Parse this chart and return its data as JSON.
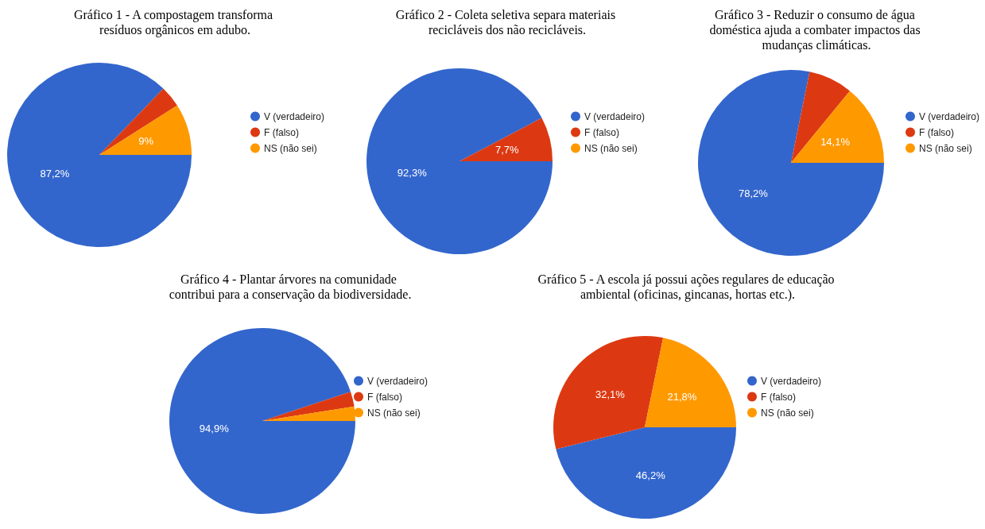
{
  "chart_data": [
    {
      "type": "pie",
      "title": "Gráfico 1 - A compostagem transforma resíduos orgânicos em adubo.",
      "categories": [
        "V (verdadeiro)",
        "F (falso)",
        "NS (não sei)"
      ],
      "values": [
        87.2,
        3.8,
        9
      ],
      "colors": [
        "#3366cc",
        "#dc3912",
        "#ff9900"
      ],
      "value_labels": [
        "87,2%",
        null,
        "9%"
      ],
      "legend": "right"
    },
    {
      "type": "pie",
      "title": "Gráfico 2 - Coleta seletiva separa materiais recicláveis dos não recicláveis.",
      "categories": [
        "V (verdadeiro)",
        "F (falso)",
        "NS (não sei)"
      ],
      "values": [
        92.3,
        7.7,
        0
      ],
      "colors": [
        "#3366cc",
        "#dc3912",
        "#ff9900"
      ],
      "value_labels": [
        "92,3%",
        "7,7%",
        null
      ],
      "legend": "right"
    },
    {
      "type": "pie",
      "title": "Gráfico 3 - Reduzir o consumo de água doméstica ajuda a combater impactos das mudanças climáticas.",
      "categories": [
        "V (verdadeiro)",
        "F (falso)",
        "NS (não sei)"
      ],
      "values": [
        78.2,
        7.7,
        14.1
      ],
      "colors": [
        "#3366cc",
        "#dc3912",
        "#ff9900"
      ],
      "value_labels": [
        "78,2%",
        null,
        "14,1%"
      ],
      "legend": "right"
    },
    {
      "type": "pie",
      "title": "Gráfico 4 - Plantar árvores na comunidade contribui para a conservação da biodiversidade.",
      "categories": [
        "V (verdadeiro)",
        "F (falso)",
        "NS (não sei)"
      ],
      "values": [
        94.9,
        2.6,
        2.5
      ],
      "colors": [
        "#3366cc",
        "#dc3912",
        "#ff9900"
      ],
      "value_labels": [
        "94,9%",
        null,
        null
      ],
      "legend": "right"
    },
    {
      "type": "pie",
      "title": "Gráfico 5 - A escola já possui ações regulares de educação ambiental (oficinas, gincanas, hortas etc.).",
      "categories": [
        "V (verdadeiro)",
        "F (falso)",
        "NS (não sei)"
      ],
      "values": [
        46.2,
        32.1,
        21.8
      ],
      "colors": [
        "#3366cc",
        "#dc3912",
        "#ff9900"
      ],
      "value_labels": [
        "46,2%",
        "32,1%",
        "21,8%"
      ],
      "legend": "right"
    }
  ]
}
